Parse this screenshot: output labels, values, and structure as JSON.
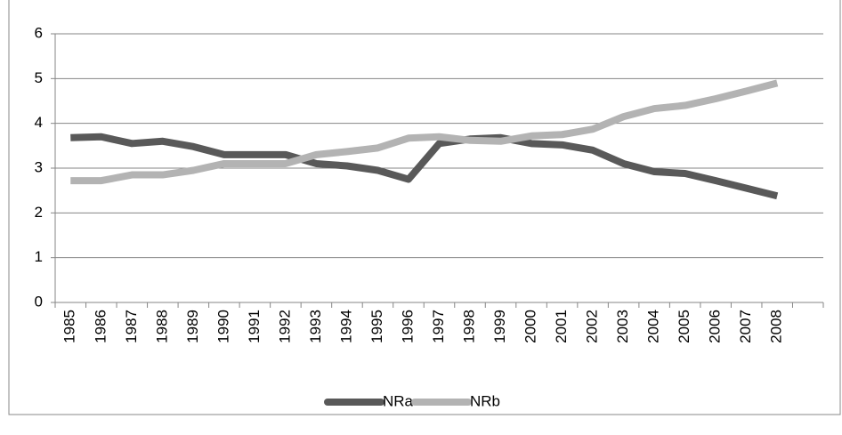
{
  "chart_data": {
    "type": "line",
    "categories": [
      "1985",
      "1986",
      "1987",
      "1988",
      "1989",
      "1990",
      "1991",
      "1992",
      "1993",
      "1994",
      "1995",
      "1996",
      "1997",
      "1998",
      "1999",
      "2000",
      "2001",
      "2002",
      "2003",
      "2004",
      "2005",
      "2006",
      "2007",
      "2008",
      null
    ],
    "series": [
      {
        "name": "NRa",
        "color": "#595959",
        "values": [
          3.68,
          3.7,
          3.55,
          3.6,
          3.48,
          3.3,
          3.3,
          3.3,
          3.1,
          3.05,
          2.95,
          2.75,
          3.55,
          3.65,
          3.68,
          3.55,
          3.52,
          3.4,
          3.1,
          2.92,
          2.88,
          2.72,
          2.55,
          2.38,
          null
        ]
      },
      {
        "name": "NRb",
        "color": "#b3b3b3",
        "values": [
          2.72,
          2.72,
          2.85,
          2.85,
          2.95,
          3.1,
          3.1,
          3.1,
          3.3,
          3.37,
          3.45,
          3.67,
          3.7,
          3.62,
          3.6,
          3.72,
          3.75,
          3.87,
          4.15,
          4.33,
          4.4,
          4.55,
          4.72,
          4.9,
          null
        ]
      }
    ],
    "ylim": [
      0,
      6
    ],
    "yticks": [
      0,
      1,
      2,
      3,
      4,
      5,
      6
    ],
    "grid": true,
    "legend": "bottom"
  }
}
